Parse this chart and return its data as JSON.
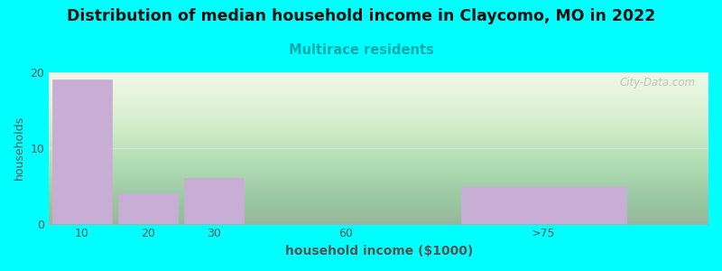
{
  "title": "Distribution of median household income in Claycomo, MO in 2022",
  "subtitle": "Multirace residents",
  "xlabel": "household income ($1000)",
  "ylabel": "households",
  "x_positions": [
    0,
    1,
    2,
    4,
    7
  ],
  "x_tick_labels": [
    "10",
    "20",
    "30",
    "60",
    ">75"
  ],
  "values": [
    19,
    4,
    6,
    0,
    5
  ],
  "bar_widths": [
    0.9,
    0.9,
    0.9,
    0.9,
    2.5
  ],
  "bar_color": "#c8aed4",
  "background_outer": "#00ffff",
  "background_inner_color": "#e8f5e0",
  "title_fontsize": 12.5,
  "subtitle_fontsize": 10.5,
  "subtitle_color": "#00aaaa",
  "ylabel_color": "#555555",
  "xlabel_color": "#555555",
  "tick_color": "#555555",
  "ylim": [
    0,
    20
  ],
  "xlim": [
    -0.5,
    9.5
  ],
  "yticks": [
    0,
    10,
    20
  ],
  "watermark": "City-Data.com",
  "watermark_color": "#aaaaaa",
  "grid_color": "#dddddd"
}
